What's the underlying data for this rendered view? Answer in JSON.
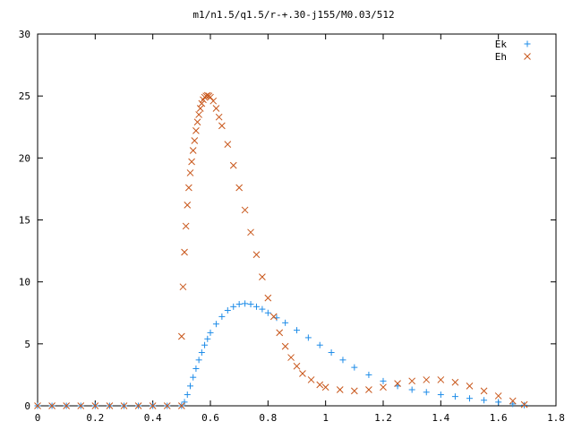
{
  "chart_data": {
    "type": "scatter",
    "title": "m1/n1.5/q1.5/r-+.30-j155/M0.03/512",
    "xlabel": "",
    "ylabel": "",
    "xlim": [
      0,
      1.8
    ],
    "ylim": [
      0,
      30
    ],
    "x_ticks": [
      "0",
      "0.2",
      "0.4",
      "0.6",
      "0.8",
      "1",
      "1.2",
      "1.4",
      "1.6",
      "1.8"
    ],
    "y_ticks": [
      "0",
      "5",
      "10",
      "15",
      "20",
      "25",
      "30"
    ],
    "grid": false,
    "legend_position": "top-right",
    "series": [
      {
        "name": "Ek",
        "marker": "plus",
        "color": "#1e8ce8",
        "points": [
          [
            0.0,
            0
          ],
          [
            0.05,
            0
          ],
          [
            0.1,
            0
          ],
          [
            0.15,
            0
          ],
          [
            0.2,
            0
          ],
          [
            0.25,
            0
          ],
          [
            0.3,
            0
          ],
          [
            0.35,
            0
          ],
          [
            0.4,
            0
          ],
          [
            0.45,
            0
          ],
          [
            0.5,
            0
          ],
          [
            0.51,
            0.3
          ],
          [
            0.52,
            0.9
          ],
          [
            0.53,
            1.6
          ],
          [
            0.54,
            2.3
          ],
          [
            0.55,
            3.0
          ],
          [
            0.56,
            3.7
          ],
          [
            0.57,
            4.3
          ],
          [
            0.58,
            4.9
          ],
          [
            0.59,
            5.4
          ],
          [
            0.6,
            5.9
          ],
          [
            0.62,
            6.6
          ],
          [
            0.64,
            7.2
          ],
          [
            0.66,
            7.7
          ],
          [
            0.68,
            8.0
          ],
          [
            0.7,
            8.2
          ],
          [
            0.72,
            8.25
          ],
          [
            0.74,
            8.2
          ],
          [
            0.76,
            8.0
          ],
          [
            0.78,
            7.8
          ],
          [
            0.8,
            7.5
          ],
          [
            0.83,
            7.1
          ],
          [
            0.86,
            6.7
          ],
          [
            0.9,
            6.1
          ],
          [
            0.94,
            5.5
          ],
          [
            0.98,
            4.9
          ],
          [
            1.02,
            4.3
          ],
          [
            1.06,
            3.7
          ],
          [
            1.1,
            3.1
          ],
          [
            1.15,
            2.5
          ],
          [
            1.2,
            2.0
          ],
          [
            1.25,
            1.6
          ],
          [
            1.3,
            1.3
          ],
          [
            1.35,
            1.1
          ],
          [
            1.4,
            0.9
          ],
          [
            1.45,
            0.75
          ],
          [
            1.5,
            0.6
          ],
          [
            1.55,
            0.45
          ],
          [
            1.6,
            0.3
          ],
          [
            1.65,
            0.15
          ],
          [
            1.69,
            0.05
          ]
        ]
      },
      {
        "name": "Eh",
        "marker": "cross",
        "color": "#c8561a",
        "points": [
          [
            0.0,
            0
          ],
          [
            0.05,
            0
          ],
          [
            0.1,
            0
          ],
          [
            0.15,
            0
          ],
          [
            0.2,
            0
          ],
          [
            0.25,
            0
          ],
          [
            0.3,
            0
          ],
          [
            0.35,
            0
          ],
          [
            0.4,
            0
          ],
          [
            0.45,
            0
          ],
          [
            0.5,
            0
          ],
          [
            0.5,
            5.6
          ],
          [
            0.505,
            9.6
          ],
          [
            0.51,
            12.4
          ],
          [
            0.515,
            14.5
          ],
          [
            0.52,
            16.2
          ],
          [
            0.525,
            17.6
          ],
          [
            0.53,
            18.8
          ],
          [
            0.535,
            19.7
          ],
          [
            0.54,
            20.6
          ],
          [
            0.545,
            21.4
          ],
          [
            0.55,
            22.2
          ],
          [
            0.555,
            22.9
          ],
          [
            0.56,
            23.5
          ],
          [
            0.565,
            24.0
          ],
          [
            0.57,
            24.4
          ],
          [
            0.575,
            24.7
          ],
          [
            0.58,
            24.9
          ],
          [
            0.585,
            25.0
          ],
          [
            0.59,
            25.05
          ],
          [
            0.595,
            25.0
          ],
          [
            0.6,
            24.9
          ],
          [
            0.61,
            24.6
          ],
          [
            0.62,
            24.0
          ],
          [
            0.63,
            23.3
          ],
          [
            0.64,
            22.6
          ],
          [
            0.66,
            21.1
          ],
          [
            0.68,
            19.4
          ],
          [
            0.7,
            17.6
          ],
          [
            0.72,
            15.8
          ],
          [
            0.74,
            14.0
          ],
          [
            0.76,
            12.2
          ],
          [
            0.78,
            10.4
          ],
          [
            0.8,
            8.7
          ],
          [
            0.82,
            7.2
          ],
          [
            0.84,
            5.9
          ],
          [
            0.86,
            4.8
          ],
          [
            0.88,
            3.9
          ],
          [
            0.9,
            3.2
          ],
          [
            0.92,
            2.6
          ],
          [
            0.95,
            2.1
          ],
          [
            0.98,
            1.7
          ],
          [
            1.0,
            1.5
          ],
          [
            1.05,
            1.3
          ],
          [
            1.1,
            1.2
          ],
          [
            1.15,
            1.3
          ],
          [
            1.2,
            1.5
          ],
          [
            1.25,
            1.8
          ],
          [
            1.3,
            2.0
          ],
          [
            1.35,
            2.1
          ],
          [
            1.4,
            2.1
          ],
          [
            1.45,
            1.9
          ],
          [
            1.5,
            1.6
          ],
          [
            1.55,
            1.2
          ],
          [
            1.6,
            0.8
          ],
          [
            1.65,
            0.4
          ],
          [
            1.69,
            0.1
          ]
        ]
      }
    ]
  }
}
